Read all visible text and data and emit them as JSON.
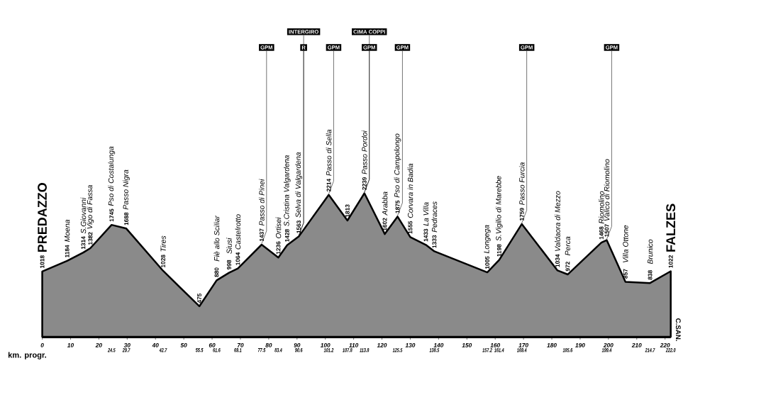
{
  "chart_data": {
    "type": "area",
    "x": [
      0,
      8.8,
      14.5,
      17,
      24.5,
      29.7,
      42.7,
      55.5,
      61.6,
      66,
      69.1,
      77.5,
      83.4,
      86.5,
      90.6,
      101.2,
      107.8,
      113.8,
      121,
      125.5,
      130,
      135.5,
      138.5,
      157.2,
      161.4,
      169.4,
      182,
      185.6,
      197.5,
      199.4,
      206,
      214.7,
      222.0
    ],
    "series": [
      {
        "color": "#8a8a8a",
        "values": [
          1018,
          1184,
          1314,
          1382,
          1745,
          1688,
          1028,
          475,
          880,
          998,
          1064,
          1437,
          1236,
          1428,
          1563,
          2214,
          1813,
          2239,
          1602,
          1875,
          1555,
          1433,
          1333,
          1005,
          1198,
          1759,
          1034,
          972,
          1468,
          1507,
          857,
          838,
          1022
        ]
      }
    ],
    "data_labels": true,
    "xlim": [
      0,
      222
    ],
    "xticks": [
      0,
      10,
      20,
      30,
      40,
      50,
      60,
      70,
      80,
      90,
      100,
      110,
      120,
      130,
      140,
      150,
      160,
      170,
      180,
      190,
      200,
      210,
      220
    ],
    "x2label": "km. progr.",
    "x2lim": [
      0,
      222
    ],
    "x2ticks": [
      24.5,
      29.7,
      42.7,
      55.5,
      61.6,
      69.1,
      77.5,
      83.4,
      90.6,
      101.2,
      107.8,
      113.8,
      125.5,
      138.5,
      157.2,
      161.4,
      169.4,
      185.6,
      199.4,
      214.7,
      {
        "value": 222.0,
        "label": "222.0"
      }
    ],
    "tick_labels": "x",
    "annotations": [
      {
        "text": "PREDAZZO",
        "x": 0,
        "y": 1018
      },
      {
        "text": "Moena",
        "x": 8.8,
        "y": 1184
      },
      {
        "text": "S.Giovanni",
        "x": 14.5,
        "y": 1314
      },
      {
        "text": "Vigo di Fassa",
        "x": 17,
        "y": 1382
      },
      {
        "text": "Pso di Costalunga",
        "x": 24.5,
        "y": 1745
      },
      {
        "text": "Passo Nigra",
        "x": 29.7,
        "y": 1688
      },
      {
        "text": "Tires",
        "x": 42.7,
        "y": 1028
      },
      {
        "text": "Fiè allo Sciliar",
        "x": 61.6,
        "y": 880
      },
      {
        "text": "Siusi",
        "x": 66,
        "y": 998
      },
      {
        "text": "Castelrotto",
        "x": 69.1,
        "y": 1064
      },
      {
        "text": "Passo di Pinei",
        "x": 77.5,
        "y": 1437
      },
      {
        "text": "GPM",
        "x": 77.5,
        "y": 1437
      },
      {
        "text": "Ortisei",
        "x": 83.4,
        "y": 1236
      },
      {
        "text": "S.Cristina Valgardena",
        "x": 86.5,
        "y": 1428
      },
      {
        "text": "Selva di Valgardena",
        "x": 90.6,
        "y": 1563
      },
      {
        "text": "R",
        "x": 90.6,
        "y": 1563
      },
      {
        "text": "INTERGIRO",
        "x": 90.6,
        "y": 1563
      },
      {
        "text": "Passo di Sella",
        "x": 101.2,
        "y": 2214
      },
      {
        "text": "GPM",
        "x": 101.2,
        "y": 2214
      },
      {
        "text": "Passo Pordoi",
        "x": 113.8,
        "y": 2239
      },
      {
        "text": "GPM",
        "x": 113.8,
        "y": 2239
      },
      {
        "text": "CIMA COPPI",
        "x": 113.8,
        "y": 2239
      },
      {
        "text": "Arabba",
        "x": 121,
        "y": 1602
      },
      {
        "text": "Pso di Campolongo",
        "x": 125.5,
        "y": 1875
      },
      {
        "text": "GPM",
        "x": 125.5,
        "y": 1875
      },
      {
        "text": "Corvara in Badia",
        "x": 130,
        "y": 1555
      },
      {
        "text": "La Villa",
        "x": 135.5,
        "y": 1433
      },
      {
        "text": "Pedraces",
        "x": 138.5,
        "y": 1333
      },
      {
        "text": "Longega",
        "x": 157.2,
        "y": 1005
      },
      {
        "text": "S.Vigilio di Marebbe",
        "x": 161.4,
        "y": 1198
      },
      {
        "text": "Passo Furcia",
        "x": 169.4,
        "y": 1759
      },
      {
        "text": "GPM",
        "x": 169.4,
        "y": 1759
      },
      {
        "text": "Valdaora di Mezzo",
        "x": 182,
        "y": 1034
      },
      {
        "text": "Perca",
        "x": 185.6,
        "y": 972
      },
      {
        "text": "Riomolino",
        "x": 197.5,
        "y": 1468
      },
      {
        "text": "Valico di Riomolino",
        "x": 199.4,
        "y": 1507
      },
      {
        "text": "GPM",
        "x": 199.4,
        "y": 1507
      },
      {
        "text": "Villa Ottone",
        "x": 206,
        "y": 857
      },
      {
        "text": "Brunico",
        "x": 214.7,
        "y": 838
      },
      {
        "text": "FALZES",
        "x": 222.0,
        "y": 1022
      },
      "C.SAN."
    ]
  }
}
